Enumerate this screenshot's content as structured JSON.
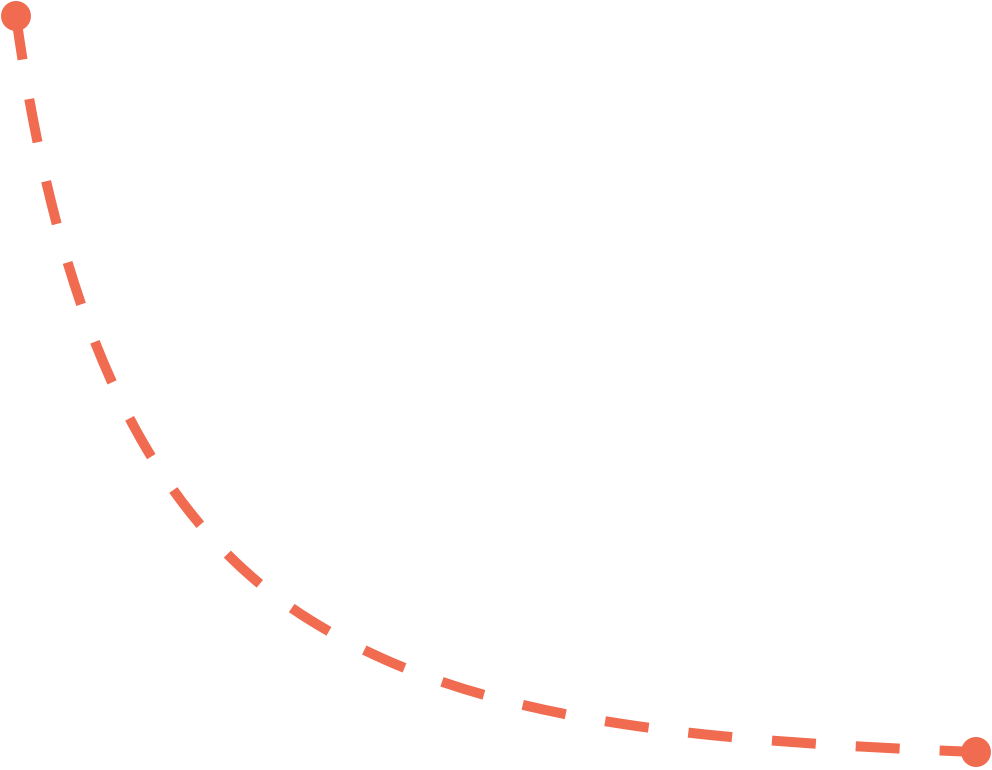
{
  "graphic": {
    "kind": "dashed-curve-connector",
    "accent_color": "#F06B50",
    "line_style": "dashed",
    "endpoints": [
      "start-dot",
      "end-dot"
    ]
  }
}
